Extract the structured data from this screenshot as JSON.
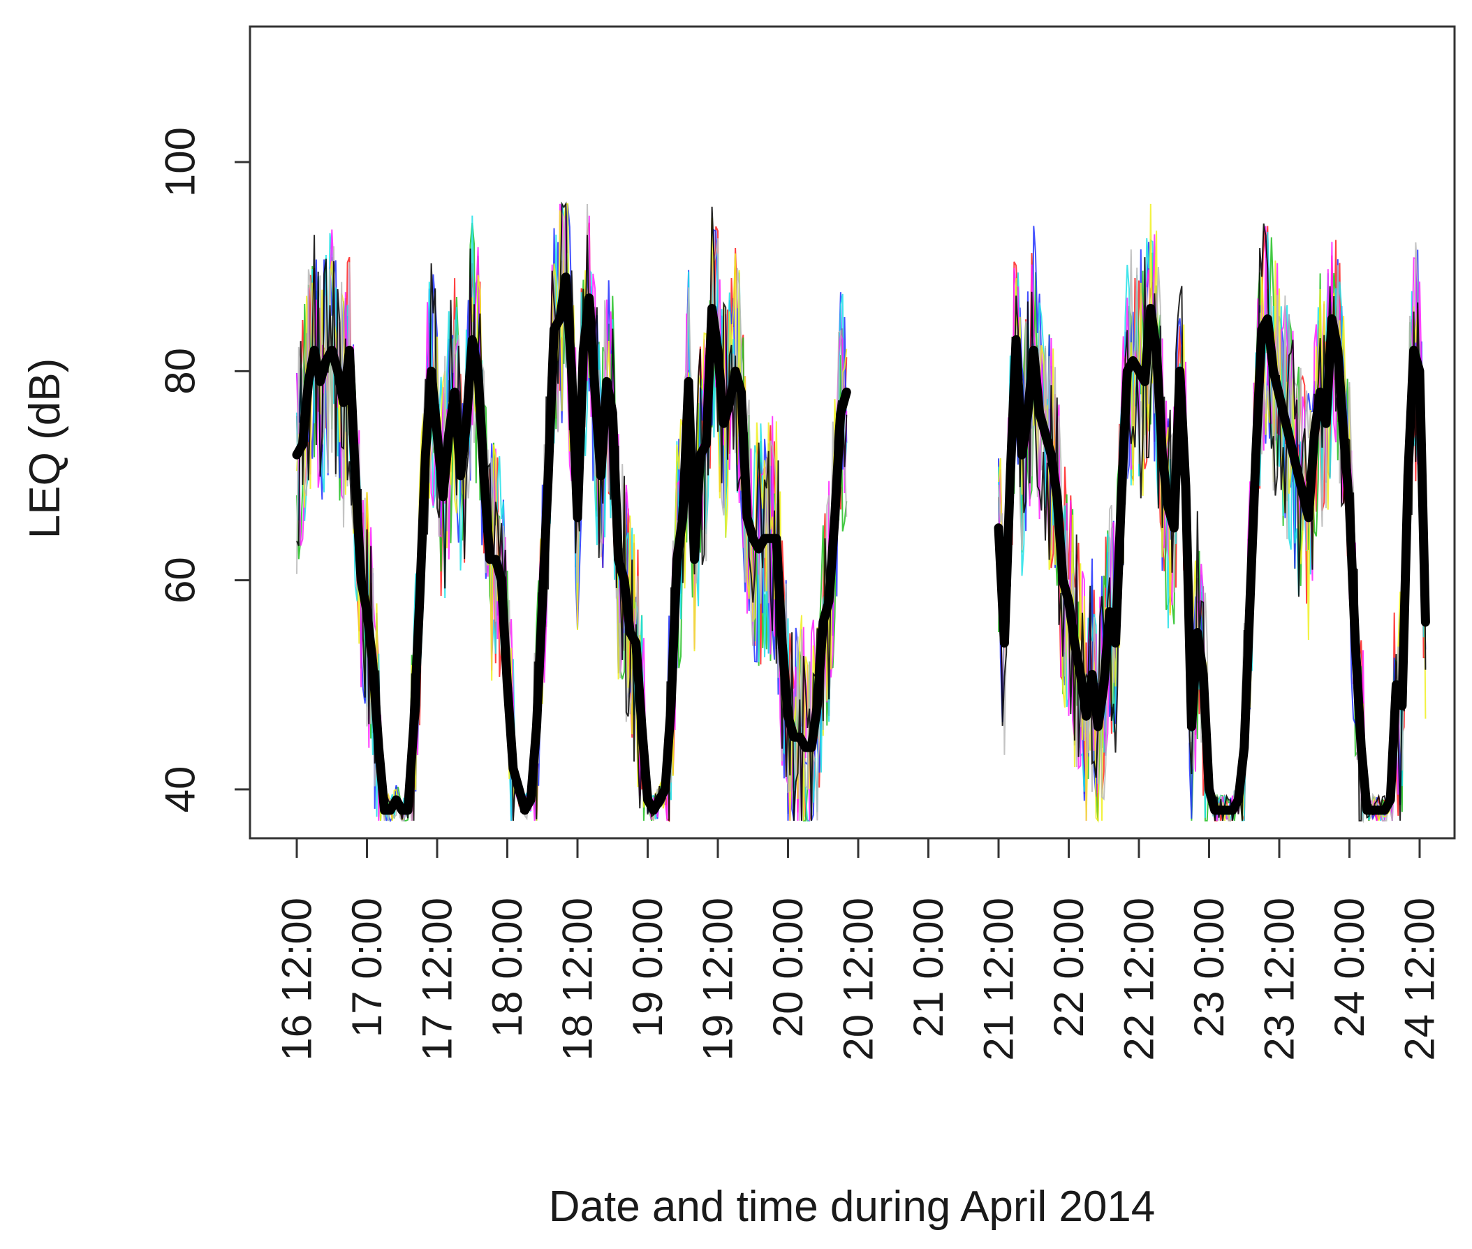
{
  "chart_data": {
    "type": "line",
    "title": "",
    "xlabel": "Date and time during April 2014",
    "ylabel": "LEQ (dB)",
    "xlim": [
      "2014-04-16T12:00",
      "2014-04-24T12:00"
    ],
    "ylim": [
      35,
      113
    ],
    "y_ticks": [
      40,
      60,
      80,
      100
    ],
    "x_ticks": [
      {
        "t": "2014-04-16T12:00",
        "label": "16 12:00"
      },
      {
        "t": "2014-04-17T00:00",
        "label": "17 0:00"
      },
      {
        "t": "2014-04-17T12:00",
        "label": "17 12:00"
      },
      {
        "t": "2014-04-18T00:00",
        "label": "18 0:00"
      },
      {
        "t": "2014-04-18T12:00",
        "label": "18 12:00"
      },
      {
        "t": "2014-04-19T00:00",
        "label": "19 0:00"
      },
      {
        "t": "2014-04-19T12:00",
        "label": "19 12:00"
      },
      {
        "t": "2014-04-20T00:00",
        "label": "20 0:00"
      },
      {
        "t": "2014-04-20T12:00",
        "label": "20 12:00"
      },
      {
        "t": "2014-04-21T00:00",
        "label": "21 0:00"
      },
      {
        "t": "2014-04-21T12:00",
        "label": "21 12:00"
      },
      {
        "t": "2014-04-22T00:00",
        "label": "22 0:00"
      },
      {
        "t": "2014-04-22T12:00",
        "label": "22 12:00"
      },
      {
        "t": "2014-04-23T00:00",
        "label": "23 0:00"
      },
      {
        "t": "2014-04-23T12:00",
        "label": "23 12:00"
      },
      {
        "t": "2014-04-24T00:00",
        "label": "24 0:00"
      },
      {
        "t": "2014-04-24T12:00",
        "label": "24 12:00"
      }
    ],
    "grid": false,
    "legend": "none",
    "background_series": {
      "colors": [
        "#ff2020",
        "#20c020",
        "#2030ff",
        "#20e0e8",
        "#ff20ff",
        "#f0f020",
        "#b8b8b8",
        "#000000"
      ],
      "range_min": 37,
      "range_max": 96
    },
    "series": [
      {
        "color": "#000000",
        "segments": [
          {
            "points": [
              [
                "2014-04-16T12:00",
                72
              ],
              [
                "2014-04-16T13:00",
                73
              ],
              [
                "2014-04-16T14:00",
                79
              ],
              [
                "2014-04-16T15:00",
                82
              ],
              [
                "2014-04-16T16:00",
                79
              ],
              [
                "2014-04-16T17:00",
                81
              ],
              [
                "2014-04-16T18:00",
                82
              ],
              [
                "2014-04-16T19:00",
                80
              ],
              [
                "2014-04-16T20:00",
                77
              ],
              [
                "2014-04-16T21:00",
                82
              ],
              [
                "2014-04-16T22:00",
                70
              ],
              [
                "2014-04-16T23:00",
                60
              ],
              [
                "2014-04-17T00:00",
                57
              ],
              [
                "2014-04-17T01:00",
                52
              ],
              [
                "2014-04-17T02:00",
                44
              ],
              [
                "2014-04-17T03:00",
                38
              ],
              [
                "2014-04-17T04:00",
                38
              ],
              [
                "2014-04-17T05:00",
                39
              ],
              [
                "2014-04-17T06:00",
                38
              ],
              [
                "2014-04-17T07:00",
                38
              ],
              [
                "2014-04-17T08:00",
                46
              ],
              [
                "2014-04-17T09:00",
                58
              ],
              [
                "2014-04-17T10:00",
                72
              ],
              [
                "2014-04-17T11:00",
                80
              ],
              [
                "2014-04-17T12:00",
                74
              ],
              [
                "2014-04-17T13:00",
                68
              ],
              [
                "2014-04-17T14:00",
                74
              ],
              [
                "2014-04-17T15:00",
                78
              ],
              [
                "2014-04-17T16:00",
                70
              ],
              [
                "2014-04-17T17:00",
                75
              ],
              [
                "2014-04-17T18:00",
                83
              ],
              [
                "2014-04-17T19:00",
                80
              ],
              [
                "2014-04-17T20:00",
                70
              ],
              [
                "2014-04-17T21:00",
                62
              ],
              [
                "2014-04-17T22:00",
                62
              ],
              [
                "2014-04-17T23:00",
                60
              ],
              [
                "2014-04-18T00:00",
                50
              ],
              [
                "2014-04-18T01:00",
                42
              ],
              [
                "2014-04-18T02:00",
                40
              ],
              [
                "2014-04-18T03:00",
                38
              ],
              [
                "2014-04-18T04:00",
                39
              ],
              [
                "2014-04-18T05:00",
                46
              ],
              [
                "2014-04-18T06:00",
                58
              ],
              [
                "2014-04-18T07:00",
                70
              ],
              [
                "2014-04-18T08:00",
                84
              ],
              [
                "2014-04-18T09:00",
                85
              ],
              [
                "2014-04-18T10:00",
                89
              ],
              [
                "2014-04-18T11:00",
                80
              ],
              [
                "2014-04-18T12:00",
                66
              ],
              [
                "2014-04-18T13:00",
                82
              ],
              [
                "2014-04-18T14:00",
                87
              ],
              [
                "2014-04-18T15:00",
                78
              ],
              [
                "2014-04-18T16:00",
                70
              ],
              [
                "2014-04-18T17:00",
                79
              ],
              [
                "2014-04-18T18:00",
                76
              ],
              [
                "2014-04-18T19:00",
                62
              ],
              [
                "2014-04-18T20:00",
                60
              ],
              [
                "2014-04-18T21:00",
                55
              ],
              [
                "2014-04-18T22:00",
                54
              ],
              [
                "2014-04-18T23:00",
                46
              ],
              [
                "2014-04-19T00:00",
                39
              ],
              [
                "2014-04-19T01:00",
                38
              ],
              [
                "2014-04-19T02:00",
                39
              ],
              [
                "2014-04-19T03:00",
                40
              ],
              [
                "2014-04-19T04:00",
                48
              ],
              [
                "2014-04-19T05:00",
                62
              ],
              [
                "2014-04-19T06:00",
                66
              ],
              [
                "2014-04-19T07:00",
                79
              ],
              [
                "2014-04-19T08:00",
                62
              ],
              [
                "2014-04-19T09:00",
                72
              ],
              [
                "2014-04-19T10:00",
                73
              ],
              [
                "2014-04-19T11:00",
                86
              ],
              [
                "2014-04-19T12:00",
                82
              ],
              [
                "2014-04-19T13:00",
                75
              ],
              [
                "2014-04-19T14:00",
                77
              ],
              [
                "2014-04-19T15:00",
                80
              ],
              [
                "2014-04-19T16:00",
                78
              ],
              [
                "2014-04-19T17:00",
                66
              ],
              [
                "2014-04-19T18:00",
                64
              ],
              [
                "2014-04-19T19:00",
                63
              ],
              [
                "2014-04-19T20:00",
                64
              ],
              [
                "2014-04-19T21:00",
                64
              ],
              [
                "2014-04-19T22:00",
                64
              ],
              [
                "2014-04-19T23:00",
                54
              ],
              [
                "2014-04-20T00:00",
                47
              ],
              [
                "2014-04-20T01:00",
                45
              ],
              [
                "2014-04-20T02:00",
                45
              ],
              [
                "2014-04-20T03:00",
                44
              ],
              [
                "2014-04-20T04:00",
                44
              ],
              [
                "2014-04-20T05:00",
                48
              ],
              [
                "2014-04-20T06:00",
                56
              ],
              [
                "2014-04-20T07:00",
                58
              ],
              [
                "2014-04-20T08:00",
                66
              ],
              [
                "2014-04-20T09:00",
                76
              ],
              [
                "2014-04-20T10:00",
                78
              ]
            ]
          },
          {
            "points": [
              [
                "2014-04-21T12:00",
                65
              ],
              [
                "2014-04-21T13:00",
                54
              ],
              [
                "2014-04-21T14:00",
                70
              ],
              [
                "2014-04-21T15:00",
                83
              ],
              [
                "2014-04-21T16:00",
                72
              ],
              [
                "2014-04-21T17:00",
                76
              ],
              [
                "2014-04-21T18:00",
                82
              ],
              [
                "2014-04-21T19:00",
                76
              ],
              [
                "2014-04-21T20:00",
                74
              ],
              [
                "2014-04-21T21:00",
                72
              ],
              [
                "2014-04-21T22:00",
                68
              ],
              [
                "2014-04-21T23:00",
                60
              ],
              [
                "2014-04-22T00:00",
                58
              ],
              [
                "2014-04-22T01:00",
                54
              ],
              [
                "2014-04-22T02:00",
                51
              ],
              [
                "2014-04-22T03:00",
                47
              ],
              [
                "2014-04-22T04:00",
                51
              ],
              [
                "2014-04-22T05:00",
                46
              ],
              [
                "2014-04-22T06:00",
                50
              ],
              [
                "2014-04-22T07:00",
                57
              ],
              [
                "2014-04-22T08:00",
                54
              ],
              [
                "2014-04-22T09:00",
                68
              ],
              [
                "2014-04-22T10:00",
                80
              ],
              [
                "2014-04-22T11:00",
                81
              ],
              [
                "2014-04-22T12:00",
                80
              ],
              [
                "2014-04-22T13:00",
                79
              ],
              [
                "2014-04-22T14:00",
                86
              ],
              [
                "2014-04-22T15:00",
                82
              ],
              [
                "2014-04-22T16:00",
                72
              ],
              [
                "2014-04-22T17:00",
                67
              ],
              [
                "2014-04-22T18:00",
                65
              ],
              [
                "2014-04-22T19:00",
                80
              ],
              [
                "2014-04-22T20:00",
                69
              ],
              [
                "2014-04-22T21:00",
                46
              ],
              [
                "2014-04-22T22:00",
                55
              ],
              [
                "2014-04-22T23:00",
                51
              ],
              [
                "2014-04-23T00:00",
                40
              ],
              [
                "2014-04-23T01:00",
                38
              ],
              [
                "2014-04-23T02:00",
                38
              ],
              [
                "2014-04-23T03:00",
                38
              ],
              [
                "2014-04-23T04:00",
                38
              ],
              [
                "2014-04-23T05:00",
                39
              ],
              [
                "2014-04-23T06:00",
                44
              ],
              [
                "2014-04-23T07:00",
                58
              ],
              [
                "2014-04-23T08:00",
                72
              ],
              [
                "2014-04-23T09:00",
                84
              ],
              [
                "2014-04-23T10:00",
                85
              ],
              [
                "2014-04-23T11:00",
                80
              ],
              [
                "2014-04-23T17:00",
                66
              ],
              [
                "2014-04-23T18:00",
                74
              ],
              [
                "2014-04-23T19:00",
                78
              ],
              [
                "2014-04-23T20:00",
                75
              ],
              [
                "2014-04-23T21:00",
                85
              ],
              [
                "2014-04-23T22:00",
                82
              ],
              [
                "2014-04-23T23:00",
                74
              ],
              [
                "2014-04-24T00:00",
                67
              ],
              [
                "2014-04-24T01:00",
                54
              ],
              [
                "2014-04-24T02:00",
                44
              ],
              [
                "2014-04-24T03:00",
                38
              ],
              [
                "2014-04-24T04:00",
                38
              ],
              [
                "2014-04-24T05:00",
                38
              ],
              [
                "2014-04-24T06:00",
                38
              ],
              [
                "2014-04-24T07:00",
                39
              ],
              [
                "2014-04-24T08:00",
                50
              ],
              [
                "2014-04-24T09:00",
                48
              ],
              [
                "2014-04-24T10:00",
                70
              ],
              [
                "2014-04-24T11:00",
                82
              ],
              [
                "2014-04-24T12:00",
                80
              ],
              [
                "2014-04-24T13:00",
                56
              ]
            ]
          }
        ]
      }
    ]
  }
}
